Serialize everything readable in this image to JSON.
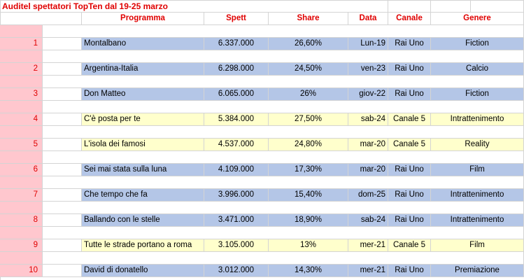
{
  "title": "Auditel spettatori TopTen dal 19-25 marzo",
  "headers": {
    "programma": "Programma",
    "spett": "Spett",
    "share": "Share",
    "data": "Data",
    "canale": "Canale",
    "genere": "Genere"
  },
  "rows": [
    {
      "rank": "1",
      "programma": "Montalbano",
      "spett": "6.337.000",
      "share": "26,60%",
      "data": "Lun-19",
      "canale": "Rai Uno",
      "genere": "Fiction",
      "color": "blue"
    },
    {
      "rank": "2",
      "programma": "Argentina-Italia",
      "spett": "6.298.000",
      "share": "24,50%",
      "data": "ven-23",
      "canale": "Rai Uno",
      "genere": "Calcio",
      "color": "blue"
    },
    {
      "rank": "3",
      "programma": "Don Matteo",
      "spett": "6.065.000",
      "share": "26%",
      "data": "giov-22",
      "canale": "Rai Uno",
      "genere": "Fiction",
      "color": "blue"
    },
    {
      "rank": "4",
      "programma": "C'è posta per te",
      "spett": "5.384.000",
      "share": "27,50%",
      "data": "sab-24",
      "canale": "Canale 5",
      "genere": "Intrattenimento",
      "color": "yellow"
    },
    {
      "rank": "5",
      "programma": "L'isola dei famosi",
      "spett": "4.537.000",
      "share": "24,80%",
      "data": "mar-20",
      "canale": "Canale 5",
      "genere": "Reality",
      "color": "yellow"
    },
    {
      "rank": "6",
      "programma": "Sei mai stata sulla luna",
      "spett": "4.109.000",
      "share": "17,30%",
      "data": "mar-20",
      "canale": "Rai Uno",
      "genere": "Film",
      "color": "blue"
    },
    {
      "rank": "7",
      "programma": "Che tempo che fa",
      "spett": "3.996.000",
      "share": "15,40%",
      "data": "dom-25",
      "canale": "Rai Uno",
      "genere": "Intrattenimento",
      "color": "blue"
    },
    {
      "rank": "8",
      "programma": "Ballando con le stelle",
      "spett": "3.471.000",
      "share": "18,90%",
      "data": "sab-24",
      "canale": "Rai Uno",
      "genere": "Intrattenimento",
      "color": "blue"
    },
    {
      "rank": "9",
      "programma": "Tutte le strade portano a roma",
      "spett": "3.105.000",
      "share": "13%",
      "data": "mer-21",
      "canale": "Canale 5",
      "genere": "Film",
      "color": "yellow"
    },
    {
      "rank": "10",
      "programma": "David di donatello",
      "spett": "3.012.000",
      "share": "14,30%",
      "data": "mer-21",
      "canale": "Rai Uno",
      "genere": "Premiazione",
      "color": "blue"
    }
  ],
  "colors": {
    "title_text": "#e00000",
    "header_text": "#e00000",
    "rank_fill": "#ffc7ce",
    "blue_fill": "#b4c6e7",
    "yellow_fill": "#ffffcc",
    "grid": "#d4d4d4"
  }
}
